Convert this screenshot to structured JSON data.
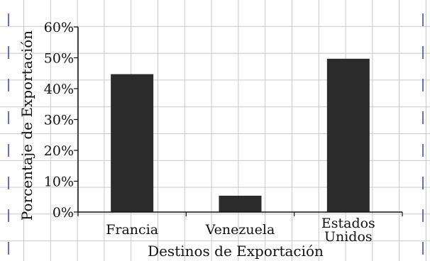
{
  "chart_data": {
    "type": "bar",
    "categories": [
      [
        "Francia"
      ],
      [
        "Venezuela"
      ],
      [
        "Estados",
        "Unidos"
      ]
    ],
    "values": [
      44.7,
      5.3,
      49.7
    ],
    "xlabel": "Destinos de Exportación",
    "ylabel": "Porcentaje de Exportación",
    "yticks": [
      "0%",
      "10%",
      "20%",
      "30%",
      "40%",
      "50%",
      "60%"
    ],
    "ylim": [
      0,
      60
    ],
    "grid": true,
    "bar_color": "#2b2b2b",
    "grid_color": "#c8c8c8",
    "margin_marker_color": "#2a3adb"
  }
}
